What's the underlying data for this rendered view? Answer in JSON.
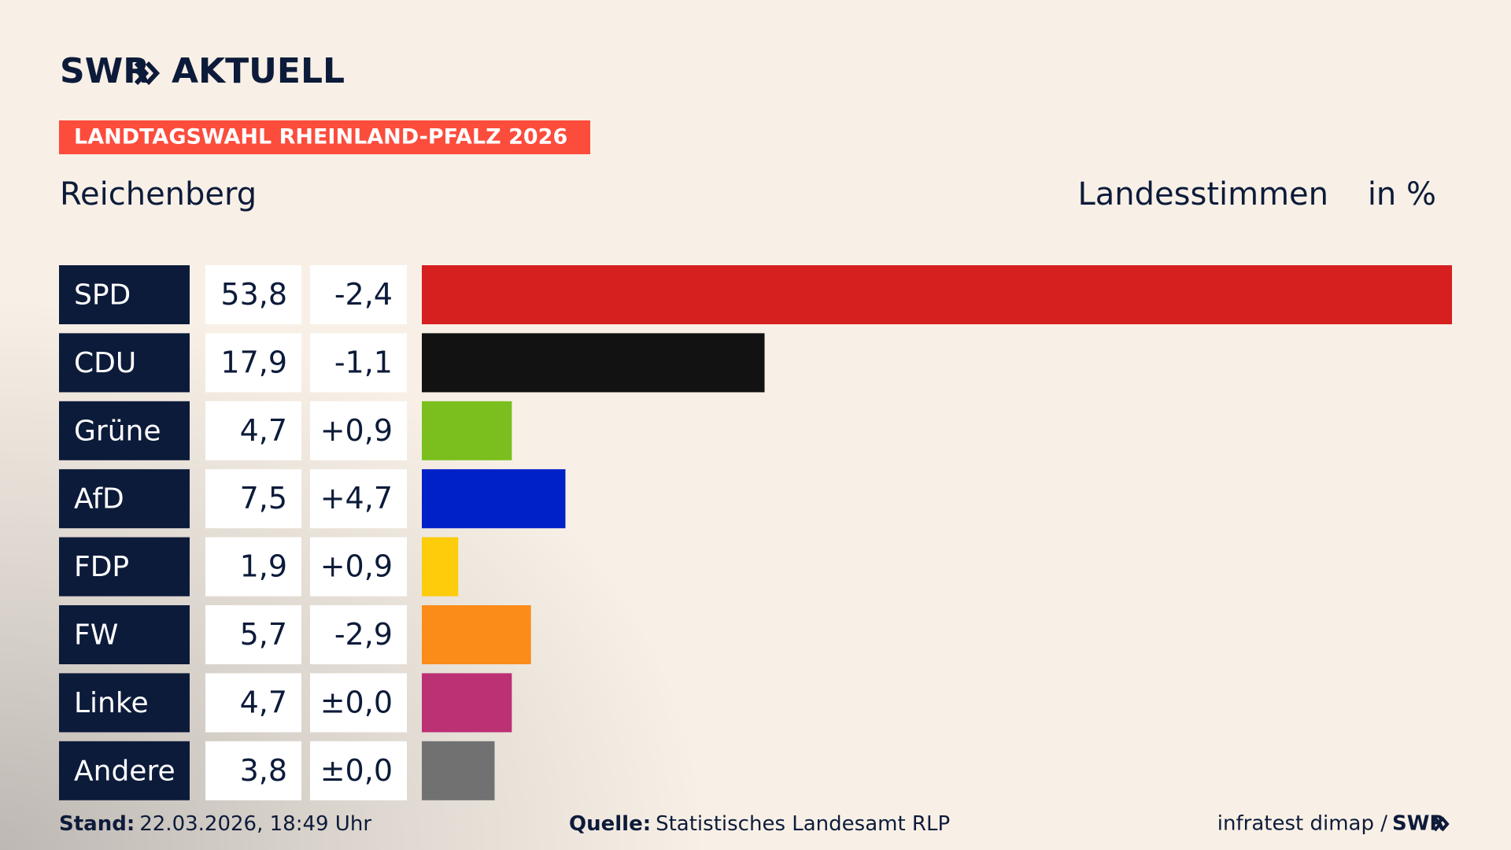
{
  "header": {
    "brand": "SWR",
    "product": "AKTUELL",
    "tag": "LANDTAGSWAHL RHEINLAND-PFALZ 2026"
  },
  "chart_data": {
    "type": "bar",
    "orientation": "horizontal",
    "subtitle": "Reichenberg",
    "measure": "Landesstimmen",
    "unit": "in %",
    "categories": [
      "SPD",
      "CDU",
      "Grüne",
      "AfD",
      "FDP",
      "FW",
      "Linke",
      "Andere"
    ],
    "values": [
      53.8,
      17.9,
      4.7,
      7.5,
      1.9,
      5.7,
      4.7,
      3.8
    ],
    "value_labels": [
      "53,8",
      "17,9",
      "4,7",
      "7,5",
      "1,9",
      "5,7",
      "4,7",
      "3,8"
    ],
    "changes": [
      "-2,4",
      "-1,1",
      "+0,9",
      "+4,7",
      "+0,9",
      "-2,9",
      "±0,0",
      "±0,0"
    ],
    "colors": [
      "#d61f1f",
      "#121212",
      "#7abf1e",
      "#0021c8",
      "#fdcc0a",
      "#fb8c1a",
      "#bb3174",
      "#717171"
    ]
  },
  "footer": {
    "stand_label": "Stand:",
    "stand": "22.03.2026, 18:49 Uhr",
    "source_label": "Quelle:",
    "source": "Statistisches Landesamt RLP",
    "credit": "infratest dimap /",
    "credit_brand": "SWR"
  }
}
